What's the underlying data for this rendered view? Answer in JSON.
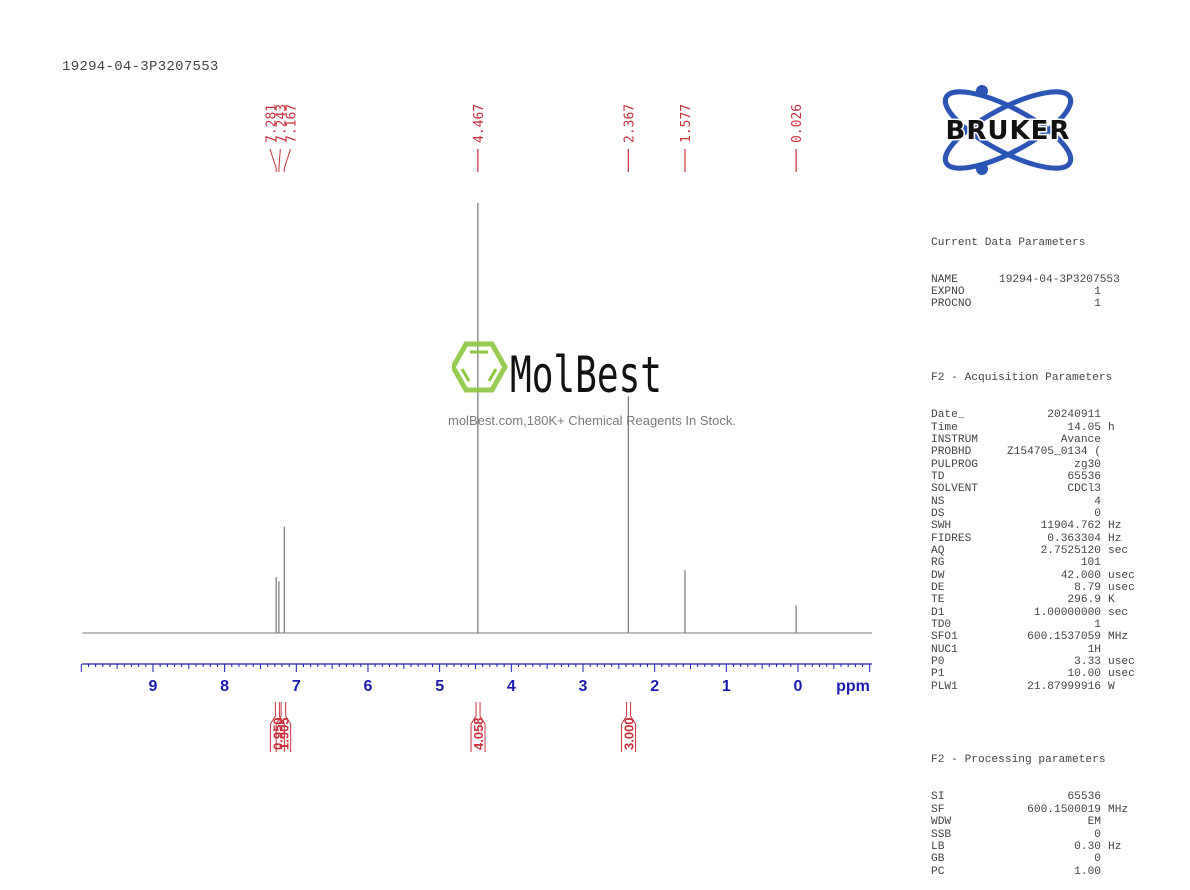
{
  "title": "19294-04-3P3207553",
  "logo_bruker": {
    "text": "BRUKER",
    "ring_color": "#2b55b5",
    "text_color": "#111111"
  },
  "watermark": {
    "brand": "MolBest",
    "tagline": "molBest.com,180K+ Chemical Reagents In Stock.",
    "icon_color": "#8cc63f"
  },
  "params": {
    "current": {
      "heading": "Current Data Parameters",
      "rows": [
        {
          "key": "NAME",
          "value": "19294-04-3P3207553",
          "unit": ""
        },
        {
          "key": "EXPNO",
          "value": "1",
          "unit": ""
        },
        {
          "key": "PROCNO",
          "value": "1",
          "unit": ""
        }
      ]
    },
    "acquisition": {
      "heading": "F2 - Acquisition Parameters",
      "rows": [
        {
          "key": "Date_",
          "value": "20240911",
          "unit": ""
        },
        {
          "key": "Time",
          "value": "14.05",
          "unit": "h"
        },
        {
          "key": "INSTRUM",
          "value": "Avance",
          "unit": ""
        },
        {
          "key": "PROBHD",
          "value": "Z154705_0134 (",
          "unit": ""
        },
        {
          "key": "PULPROG",
          "value": "zg30",
          "unit": ""
        },
        {
          "key": "TD",
          "value": "65536",
          "unit": ""
        },
        {
          "key": "SOLVENT",
          "value": "CDCl3",
          "unit": ""
        },
        {
          "key": "NS",
          "value": "4",
          "unit": ""
        },
        {
          "key": "DS",
          "value": "0",
          "unit": ""
        },
        {
          "key": "SWH",
          "value": "11904.762",
          "unit": "Hz"
        },
        {
          "key": "FIDRES",
          "value": "0.363304",
          "unit": "Hz"
        },
        {
          "key": "AQ",
          "value": "2.7525120",
          "unit": "sec"
        },
        {
          "key": "RG",
          "value": "101",
          "unit": ""
        },
        {
          "key": "DW",
          "value": "42.000",
          "unit": "usec"
        },
        {
          "key": "DE",
          "value": "8.79",
          "unit": "usec"
        },
        {
          "key": "TE",
          "value": "296.9",
          "unit": "K"
        },
        {
          "key": "D1",
          "value": "1.00000000",
          "unit": "sec"
        },
        {
          "key": "TD0",
          "value": "1",
          "unit": ""
        },
        {
          "key": "SFO1",
          "value": "600.1537059",
          "unit": "MHz"
        },
        {
          "key": "NUC1",
          "value": "1H",
          "unit": ""
        },
        {
          "key": "P0",
          "value": "3.33",
          "unit": "usec"
        },
        {
          "key": "P1",
          "value": "10.00",
          "unit": "usec"
        },
        {
          "key": "PLW1",
          "value": "21.87999916",
          "unit": "W"
        }
      ]
    },
    "processing": {
      "heading": "F2 - Processing parameters",
      "rows": [
        {
          "key": "SI",
          "value": "65536",
          "unit": ""
        },
        {
          "key": "SF",
          "value": "600.1500019",
          "unit": "MHz"
        },
        {
          "key": "WDW",
          "value": "EM",
          "unit": ""
        },
        {
          "key": "SSB",
          "value": "0",
          "unit": ""
        },
        {
          "key": "LB",
          "value": "0.30",
          "unit": "Hz"
        },
        {
          "key": "GB",
          "value": "0",
          "unit": ""
        },
        {
          "key": "PC",
          "value": "1.00",
          "unit": ""
        }
      ]
    }
  },
  "chart_data": {
    "type": "line",
    "title": "19294-04-3P3207553",
    "xlabel": "ppm",
    "ylabel": "",
    "xlim": [
      10.0,
      -1.0
    ],
    "x_ticks": [
      9,
      8,
      7,
      6,
      5,
      4,
      3,
      2,
      1,
      0
    ],
    "x_tick_labels": [
      "9",
      "8",
      "7",
      "6",
      "5",
      "4",
      "3",
      "2",
      "1",
      "0"
    ],
    "grid": false,
    "legend": null,
    "peaks": [
      {
        "ppm": 7.281,
        "rel_height": 0.13
      },
      {
        "ppm": 7.243,
        "rel_height": 0.12
      },
      {
        "ppm": 7.167,
        "rel_height": 0.247
      },
      {
        "ppm": 4.467,
        "rel_height": 1.0
      },
      {
        "ppm": 2.367,
        "rel_height": 0.55
      },
      {
        "ppm": 1.577,
        "rel_height": 0.146
      },
      {
        "ppm": 0.026,
        "rel_height": 0.064
      }
    ],
    "peak_labels": [
      "7.281",
      "7.243",
      "7.167",
      "4.467",
      "2.367",
      "1.577",
      "0.026"
    ],
    "integrals": [
      {
        "from_ppm": 7.32,
        "to_ppm": 7.26,
        "value": "0.950",
        "center_ppm": 7.27
      },
      {
        "from_ppm": 7.24,
        "to_ppm": 7.12,
        "value": "1.905",
        "center_ppm": 7.18
      },
      {
        "from_ppm": 4.52,
        "to_ppm": 4.41,
        "value": "4.058",
        "center_ppm": 4.467
      },
      {
        "from_ppm": 2.42,
        "to_ppm": 2.31,
        "value": "3.000",
        "center_ppm": 2.367
      }
    ],
    "colors": {
      "spectrum": "#777777",
      "axis": "#1b1bb0",
      "labels": "#c8323c"
    }
  }
}
